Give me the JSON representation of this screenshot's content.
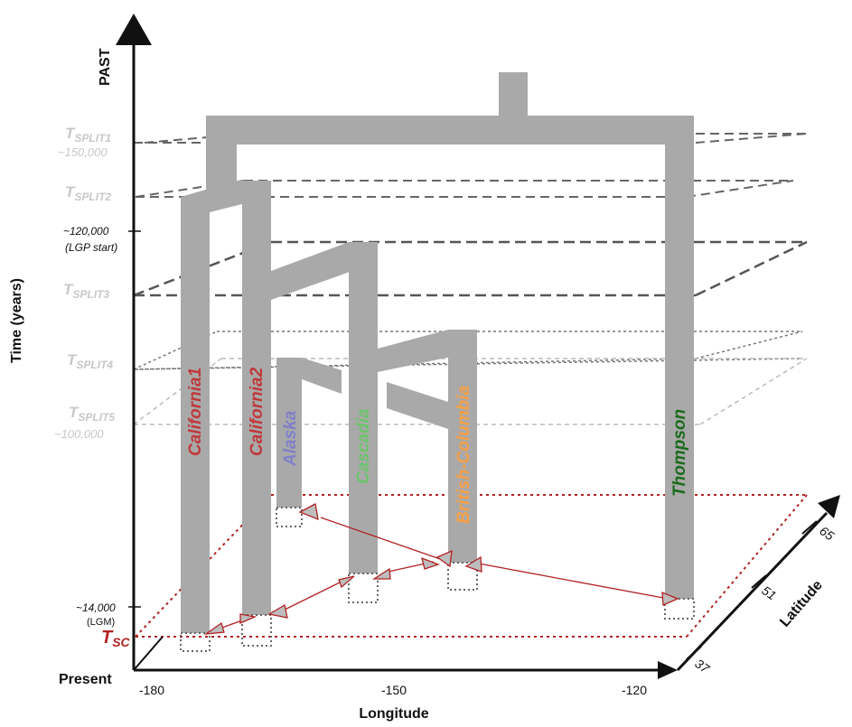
{
  "axes": {
    "time_title": "Time (years)",
    "past_label": "PAST",
    "present_label": "Present",
    "longitude_title": "Longitude",
    "latitude_title": "Latitude",
    "longitude_ticks": [
      "-180",
      "-150",
      "-120"
    ],
    "latitude_ticks": [
      "37",
      "51",
      "65"
    ]
  },
  "time_markers": {
    "tsplit1": {
      "main": "T",
      "sub": "SPLIT1",
      "years": "~150,000"
    },
    "tsplit2": {
      "main": "T",
      "sub": "SPLIT2"
    },
    "lgp": {
      "years": "~120,000",
      "note": "(LGP start)"
    },
    "tsplit3": {
      "main": "T",
      "sub": "SPLIT3"
    },
    "tsplit4": {
      "main": "T",
      "sub": "SPLIT4"
    },
    "tsplit5": {
      "main": "T",
      "sub": "SPLIT5",
      "years": "~100,000"
    },
    "lgm": {
      "years": "~14,000",
      "note": "(LGM)"
    },
    "tsc": {
      "main": "T",
      "sub": "SC"
    }
  },
  "populations": {
    "california1": "California1",
    "california2": "California2",
    "alaska": "Alaska",
    "cascadia": "Cascadia",
    "british_columbia": "British-Columbia",
    "thompson": "Thompson"
  },
  "colors": {
    "branch": "#a9a9a9",
    "california": "#c0393b",
    "alaska": "#8080c8",
    "cascadia": "#6cc46c",
    "british_columbia": "#f5a048",
    "thompson": "#1a6b1a",
    "contact": "#b22222",
    "tsplit_label": "#c8c8c8"
  }
}
